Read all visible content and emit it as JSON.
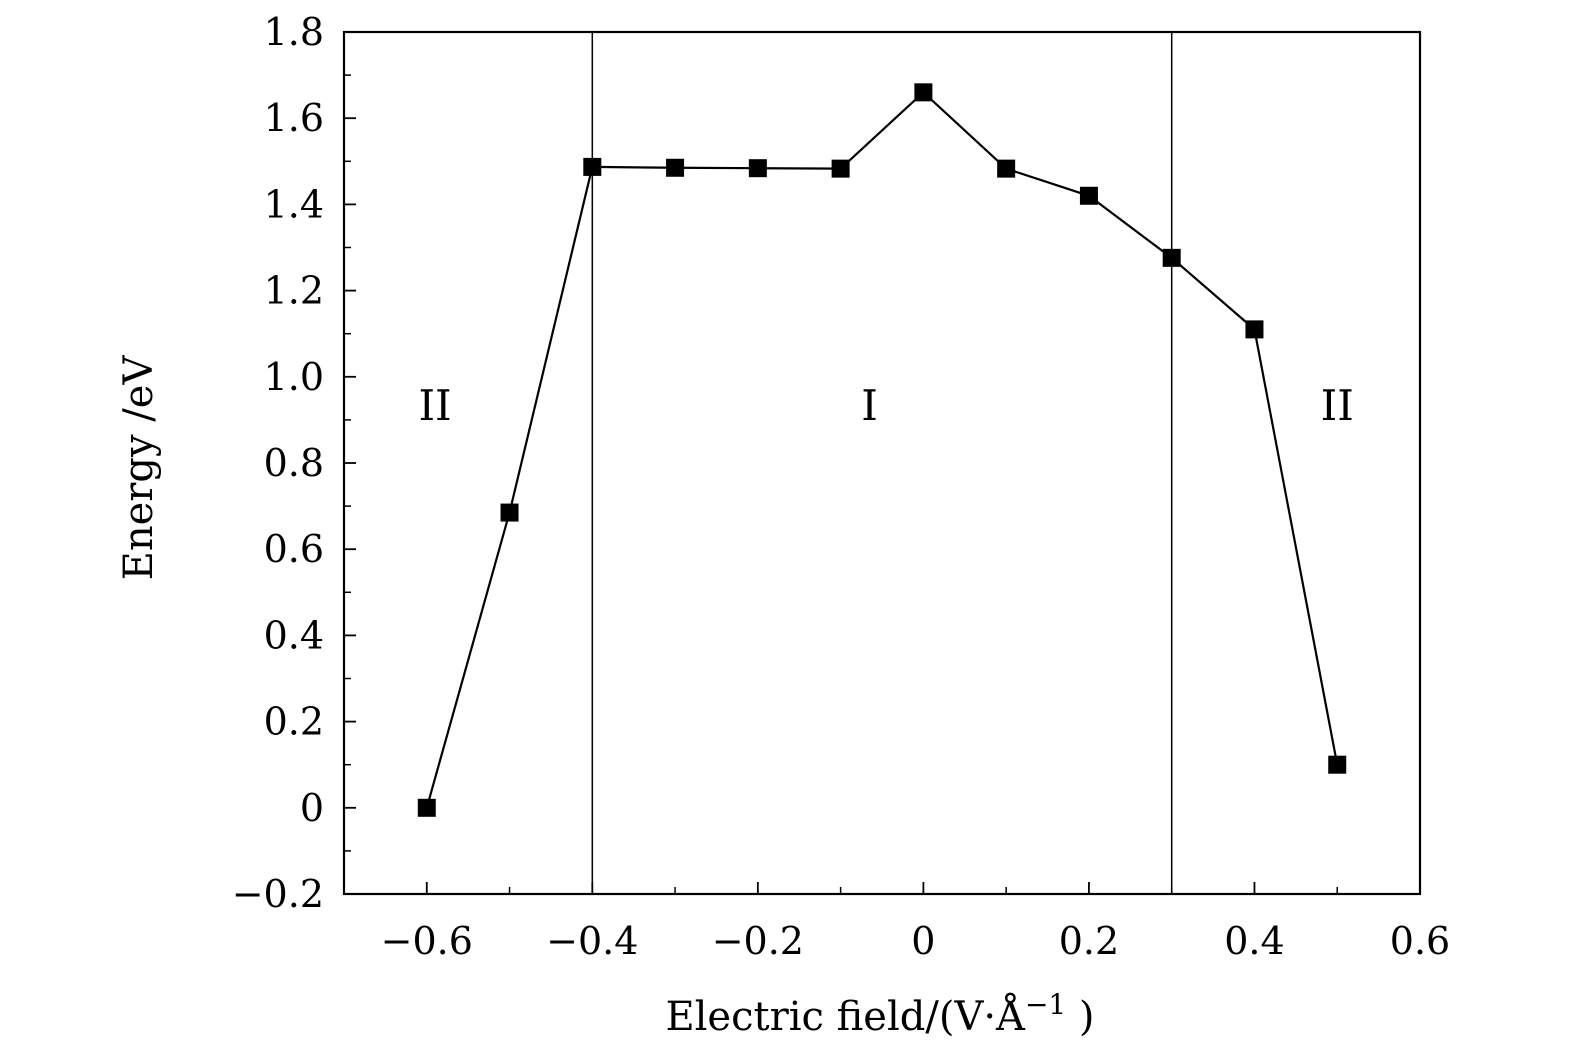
{
  "chart_data": {
    "type": "line",
    "title": "",
    "xlabel": "Electric field/(V·Å",
    "xlabel_sup": "−1",
    "xlabel_tail": " )",
    "ylabel": "Energy /eV",
    "xlim": [
      -0.7,
      0.6
    ],
    "ylim": [
      -0.2,
      1.8
    ],
    "x_ticks": [
      -0.6,
      -0.4,
      -0.2,
      0,
      0.2,
      0.4,
      0.6
    ],
    "x_tick_labels": [
      "−0.6",
      "−0.4",
      "−0.2",
      "0",
      "0.2",
      "0.4",
      "0.6"
    ],
    "y_ticks": [
      -0.2,
      0,
      0.2,
      0.4,
      0.6,
      0.8,
      1.0,
      1.2,
      1.4,
      1.6,
      1.8
    ],
    "y_tick_labels": [
      "−0.2",
      "0",
      "0.2",
      "0.4",
      "0.6",
      "0.8",
      "1.0",
      "1.2",
      "1.4",
      "1.6",
      "1.8"
    ],
    "grid": false,
    "series": [
      {
        "marker": "square",
        "color": "#000000",
        "x": [
          -0.6,
          -0.5,
          -0.4,
          -0.3,
          -0.2,
          -0.1,
          0.0,
          0.1,
          0.2,
          0.3,
          0.4,
          0.5
        ],
        "y": [
          0.0,
          0.685,
          1.487,
          1.485,
          1.484,
          1.483,
          1.66,
          1.483,
          1.42,
          1.276,
          1.11,
          0.1
        ]
      }
    ],
    "vertical_lines": [
      -0.4,
      0.3
    ],
    "regions": [
      {
        "label": "II",
        "x": -0.59,
        "y": 0.9
      },
      {
        "label": "I",
        "x": -0.065,
        "y": 0.9
      },
      {
        "label": "II",
        "x": 0.5,
        "y": 0.9
      }
    ]
  }
}
